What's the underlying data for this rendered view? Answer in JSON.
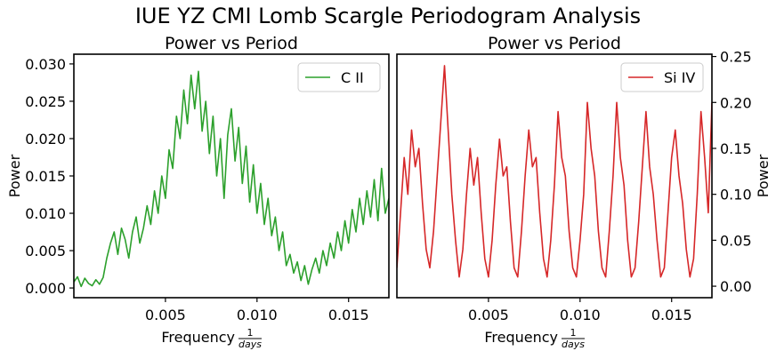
{
  "figure": {
    "title": "IUE YZ CMI Lomb Scargle Periodogram Analysis"
  },
  "chart_data": [
    {
      "type": "line",
      "title": "Power vs Period",
      "xlabel": "Frequency",
      "xlabel_frac_num": "1",
      "xlabel_frac_den": "days",
      "ylabel": "Power",
      "ylabel_side": "left",
      "xlim": [
        0.0,
        0.0172
      ],
      "ylim": [
        -0.0013,
        0.0313
      ],
      "xticks": [
        0.005,
        0.01,
        0.015
      ],
      "xtick_labels": [
        "0.005",
        "0.010",
        "0.015"
      ],
      "yticks": [
        0.0,
        0.005,
        0.01,
        0.015,
        0.02,
        0.025,
        0.03
      ],
      "ytick_labels": [
        "0.000",
        "0.005",
        "0.010",
        "0.015",
        "0.020",
        "0.025",
        "0.030"
      ],
      "legend_position": "top-right",
      "series": [
        {
          "name": "C II",
          "color": "#2ca02c",
          "points": [
            [
              0.0,
              0.0008
            ],
            [
              0.0002,
              0.0015
            ],
            [
              0.0004,
              0.0002
            ],
            [
              0.0006,
              0.0013
            ],
            [
              0.0008,
              0.0006
            ],
            [
              0.001,
              0.0003
            ],
            [
              0.0012,
              0.0011
            ],
            [
              0.0014,
              0.0005
            ],
            [
              0.0016,
              0.0014
            ],
            [
              0.0018,
              0.004
            ],
            [
              0.002,
              0.006
            ],
            [
              0.0022,
              0.0075
            ],
            [
              0.0024,
              0.0045
            ],
            [
              0.0026,
              0.008
            ],
            [
              0.0028,
              0.0065
            ],
            [
              0.003,
              0.004
            ],
            [
              0.0032,
              0.0075
            ],
            [
              0.0034,
              0.0095
            ],
            [
              0.0036,
              0.006
            ],
            [
              0.0038,
              0.008
            ],
            [
              0.004,
              0.011
            ],
            [
              0.0042,
              0.0085
            ],
            [
              0.0044,
              0.013
            ],
            [
              0.0046,
              0.01
            ],
            [
              0.0048,
              0.015
            ],
            [
              0.005,
              0.012
            ],
            [
              0.0052,
              0.0185
            ],
            [
              0.0054,
              0.016
            ],
            [
              0.0056,
              0.023
            ],
            [
              0.0058,
              0.02
            ],
            [
              0.006,
              0.0265
            ],
            [
              0.0062,
              0.022
            ],
            [
              0.0064,
              0.0285
            ],
            [
              0.0066,
              0.024
            ],
            [
              0.0068,
              0.029
            ],
            [
              0.007,
              0.021
            ],
            [
              0.0072,
              0.025
            ],
            [
              0.0074,
              0.018
            ],
            [
              0.0076,
              0.023
            ],
            [
              0.0078,
              0.015
            ],
            [
              0.008,
              0.02
            ],
            [
              0.0082,
              0.012
            ],
            [
              0.0084,
              0.0205
            ],
            [
              0.0086,
              0.024
            ],
            [
              0.0088,
              0.017
            ],
            [
              0.009,
              0.0215
            ],
            [
              0.0092,
              0.014
            ],
            [
              0.0094,
              0.019
            ],
            [
              0.0096,
              0.0115
            ],
            [
              0.0098,
              0.0165
            ],
            [
              0.01,
              0.01
            ],
            [
              0.0102,
              0.014
            ],
            [
              0.0104,
              0.0085
            ],
            [
              0.0106,
              0.012
            ],
            [
              0.0108,
              0.007
            ],
            [
              0.011,
              0.0095
            ],
            [
              0.0112,
              0.005
            ],
            [
              0.0114,
              0.0075
            ],
            [
              0.0116,
              0.003
            ],
            [
              0.0118,
              0.0045
            ],
            [
              0.012,
              0.002
            ],
            [
              0.0122,
              0.0035
            ],
            [
              0.0124,
              0.001
            ],
            [
              0.0126,
              0.003
            ],
            [
              0.0128,
              0.0005
            ],
            [
              0.013,
              0.0025
            ],
            [
              0.0132,
              0.004
            ],
            [
              0.0134,
              0.002
            ],
            [
              0.0136,
              0.005
            ],
            [
              0.0138,
              0.003
            ],
            [
              0.014,
              0.006
            ],
            [
              0.0142,
              0.004
            ],
            [
              0.0144,
              0.0075
            ],
            [
              0.0146,
              0.005
            ],
            [
              0.0148,
              0.009
            ],
            [
              0.015,
              0.006
            ],
            [
              0.0152,
              0.0105
            ],
            [
              0.0154,
              0.0075
            ],
            [
              0.0156,
              0.012
            ],
            [
              0.0158,
              0.0085
            ],
            [
              0.016,
              0.013
            ],
            [
              0.0162,
              0.0095
            ],
            [
              0.0164,
              0.0145
            ],
            [
              0.0166,
              0.009
            ],
            [
              0.0168,
              0.016
            ],
            [
              0.017,
              0.01
            ],
            [
              0.0172,
              0.012
            ]
          ]
        }
      ]
    },
    {
      "type": "line",
      "title": "Power vs Period",
      "xlabel": "Frequency",
      "xlabel_frac_num": "1",
      "xlabel_frac_den": "days",
      "ylabel": "Power",
      "ylabel_side": "right",
      "xlim": [
        0.0,
        0.0172
      ],
      "ylim": [
        -0.0125,
        0.2525
      ],
      "xticks": [
        0.005,
        0.01,
        0.015
      ],
      "xtick_labels": [
        "0.005",
        "0.010",
        "0.015"
      ],
      "yticks": [
        0.0,
        0.05,
        0.1,
        0.15,
        0.2,
        0.25
      ],
      "ytick_labels": [
        "0.00",
        "0.05",
        "0.10",
        "0.15",
        "0.20",
        "0.25"
      ],
      "legend_position": "top-right",
      "series": [
        {
          "name": "Si IV",
          "color": "#d62728",
          "points": [
            [
              0.0,
              0.02
            ],
            [
              0.0002,
              0.08
            ],
            [
              0.0004,
              0.14
            ],
            [
              0.0006,
              0.1
            ],
            [
              0.0008,
              0.17
            ],
            [
              0.001,
              0.13
            ],
            [
              0.0012,
              0.15
            ],
            [
              0.0014,
              0.09
            ],
            [
              0.0016,
              0.04
            ],
            [
              0.0018,
              0.02
            ],
            [
              0.002,
              0.06
            ],
            [
              0.0022,
              0.12
            ],
            [
              0.0024,
              0.18
            ],
            [
              0.0026,
              0.24
            ],
            [
              0.0028,
              0.17
            ],
            [
              0.003,
              0.1
            ],
            [
              0.0032,
              0.05
            ],
            [
              0.0034,
              0.01
            ],
            [
              0.0036,
              0.04
            ],
            [
              0.0038,
              0.1
            ],
            [
              0.004,
              0.15
            ],
            [
              0.0042,
              0.11
            ],
            [
              0.0044,
              0.14
            ],
            [
              0.0046,
              0.08
            ],
            [
              0.0048,
              0.03
            ],
            [
              0.005,
              0.01
            ],
            [
              0.0052,
              0.05
            ],
            [
              0.0054,
              0.11
            ],
            [
              0.0056,
              0.16
            ],
            [
              0.0058,
              0.12
            ],
            [
              0.006,
              0.13
            ],
            [
              0.0062,
              0.07
            ],
            [
              0.0064,
              0.02
            ],
            [
              0.0066,
              0.01
            ],
            [
              0.0068,
              0.06
            ],
            [
              0.007,
              0.12
            ],
            [
              0.0072,
              0.17
            ],
            [
              0.0074,
              0.13
            ],
            [
              0.0076,
              0.14
            ],
            [
              0.0078,
              0.08
            ],
            [
              0.008,
              0.03
            ],
            [
              0.0082,
              0.01
            ],
            [
              0.0084,
              0.05
            ],
            [
              0.0086,
              0.11
            ],
            [
              0.0088,
              0.19
            ],
            [
              0.009,
              0.14
            ],
            [
              0.0092,
              0.12
            ],
            [
              0.0094,
              0.06
            ],
            [
              0.0096,
              0.02
            ],
            [
              0.0098,
              0.01
            ],
            [
              0.01,
              0.05
            ],
            [
              0.0102,
              0.1
            ],
            [
              0.0104,
              0.2
            ],
            [
              0.0106,
              0.15
            ],
            [
              0.0108,
              0.12
            ],
            [
              0.011,
              0.06
            ],
            [
              0.0112,
              0.02
            ],
            [
              0.0114,
              0.01
            ],
            [
              0.0116,
              0.06
            ],
            [
              0.0118,
              0.12
            ],
            [
              0.012,
              0.2
            ],
            [
              0.0122,
              0.14
            ],
            [
              0.0124,
              0.11
            ],
            [
              0.0126,
              0.05
            ],
            [
              0.0128,
              0.01
            ],
            [
              0.013,
              0.02
            ],
            [
              0.0132,
              0.07
            ],
            [
              0.0134,
              0.13
            ],
            [
              0.0136,
              0.19
            ],
            [
              0.0138,
              0.13
            ],
            [
              0.014,
              0.1
            ],
            [
              0.0142,
              0.05
            ],
            [
              0.0144,
              0.01
            ],
            [
              0.0146,
              0.02
            ],
            [
              0.0148,
              0.08
            ],
            [
              0.015,
              0.14
            ],
            [
              0.0152,
              0.17
            ],
            [
              0.0154,
              0.12
            ],
            [
              0.0156,
              0.09
            ],
            [
              0.0158,
              0.04
            ],
            [
              0.016,
              0.01
            ],
            [
              0.0162,
              0.03
            ],
            [
              0.0164,
              0.1
            ],
            [
              0.0166,
              0.19
            ],
            [
              0.0168,
              0.14
            ],
            [
              0.017,
              0.08
            ],
            [
              0.0172,
              0.2
            ]
          ]
        }
      ]
    }
  ]
}
